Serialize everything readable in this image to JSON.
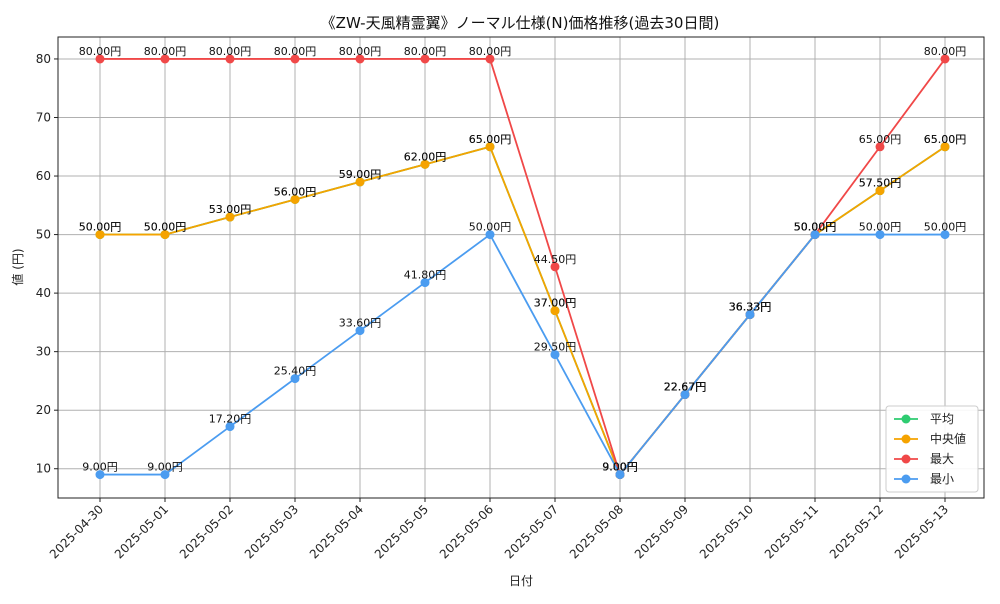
{
  "chart_data": {
    "type": "line",
    "title": "《ZW-天風精霊翼》ノーマル仕様(N)価格推移(過去30日間)",
    "xlabel": "日付",
    "ylabel": "値 (円)",
    "ylim": [
      5,
      83.75
    ],
    "yticks": [
      10,
      20,
      30,
      40,
      50,
      60,
      70,
      80
    ],
    "grid": true,
    "legend_position": "lower-right",
    "label_suffix": "円",
    "categories": [
      "2025-04-30",
      "2025-05-01",
      "2025-05-02",
      "2025-05-03",
      "2025-05-04",
      "2025-05-05",
      "2025-05-06",
      "2025-05-07",
      "2025-05-08",
      "2025-05-09",
      "2025-05-10",
      "2025-05-11",
      "2025-05-12",
      "2025-05-13"
    ],
    "series": [
      {
        "name": "平均",
        "color": "#2ecc71",
        "values": [
          50.0,
          50.0,
          53.0,
          56.0,
          59.0,
          62.0,
          65.0,
          37.0,
          9.0,
          22.67,
          36.33,
          50.0,
          57.5,
          65.0
        ]
      },
      {
        "name": "中央値",
        "color": "#f5a300",
        "values": [
          50.0,
          50.0,
          53.0,
          56.0,
          59.0,
          62.0,
          65.0,
          37.0,
          9.0,
          22.67,
          36.33,
          50.0,
          57.5,
          65.0
        ]
      },
      {
        "name": "最大",
        "color": "#f04848",
        "values": [
          80.0,
          80.0,
          80.0,
          80.0,
          80.0,
          80.0,
          80.0,
          44.5,
          9.0,
          22.67,
          36.33,
          50.0,
          65.0,
          80.0
        ]
      },
      {
        "name": "最小",
        "color": "#4b9cf0",
        "values": [
          9.0,
          9.0,
          17.2,
          25.4,
          33.6,
          41.8,
          50.0,
          29.5,
          9.0,
          22.67,
          36.33,
          50.0,
          50.0,
          50.0
        ]
      }
    ]
  }
}
